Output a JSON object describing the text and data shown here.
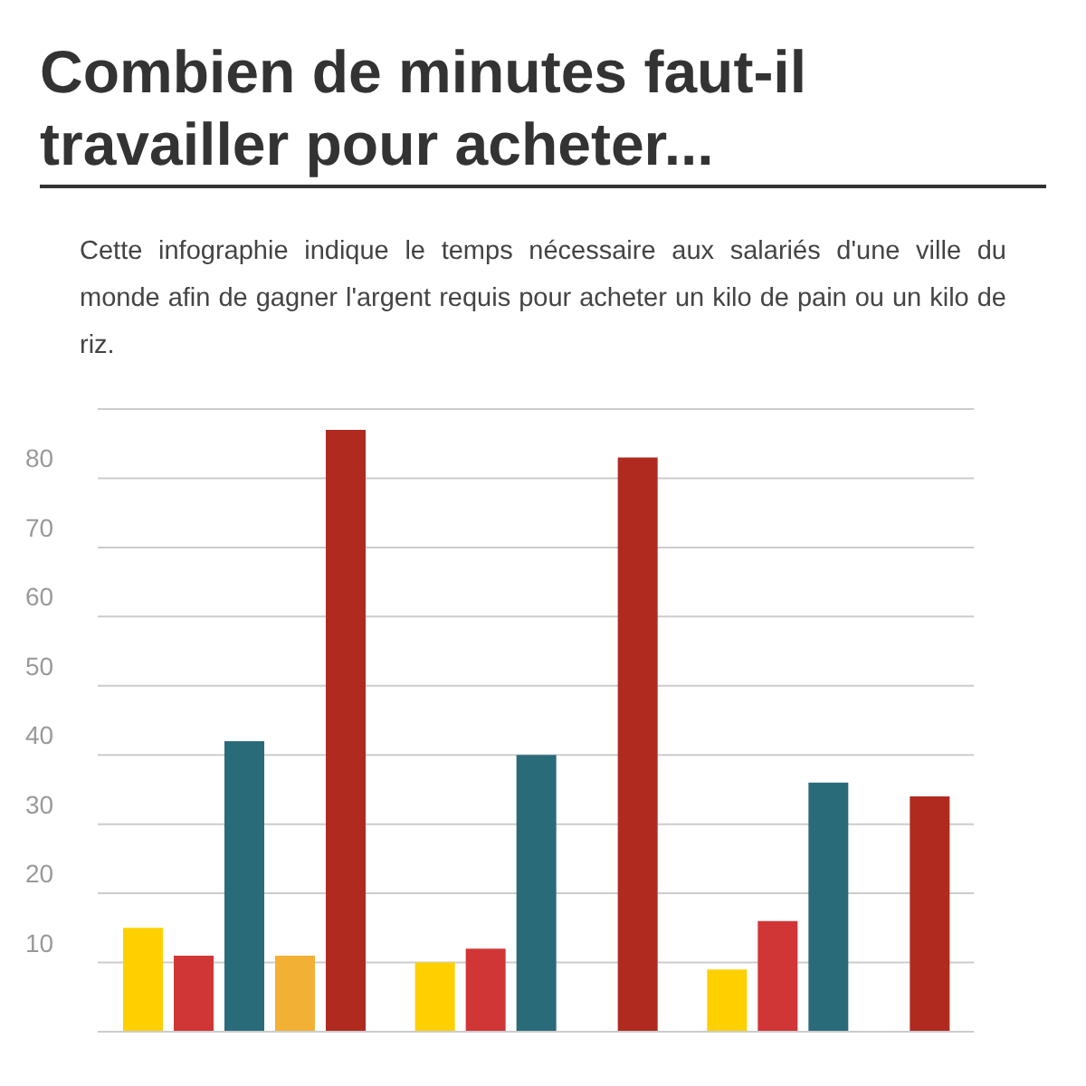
{
  "chart_data": {
    "type": "bar",
    "title": "Combien de minutes faut-il travailler pour acheter...",
    "subtitle": "Cette infographie indique le temps nécessaire aux salariés d'une ville du monde afin de gagner l'argent requis pour acheter un kilo de pain ou un kilo de riz.",
    "categories": [
      null,
      null,
      null
    ],
    "series": [
      {
        "color": "#ffd000",
        "values": [
          15,
          10,
          9
        ]
      },
      {
        "color": "#d13636",
        "values": [
          11,
          12,
          16
        ]
      },
      {
        "color": "#2a6b7a",
        "values": [
          42,
          40,
          36
        ]
      },
      {
        "color": "#f2b035",
        "values": [
          11,
          null,
          null
        ]
      },
      {
        "color": "#b02a20",
        "values": [
          87,
          83,
          34
        ]
      }
    ],
    "ylim": [
      0,
      90
    ],
    "yticks": [
      10,
      20,
      30,
      40,
      50,
      60,
      70,
      80
    ],
    "grid": "y",
    "legend": false
  }
}
